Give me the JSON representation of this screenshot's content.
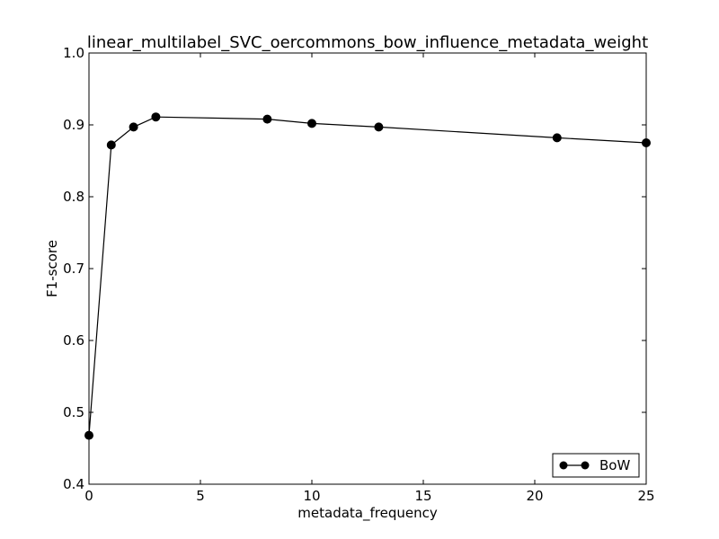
{
  "chart_data": {
    "type": "line",
    "title": "linear_multilabel_SVC_oercommons_bow_influence_metadata_weight",
    "xlabel": "metadata_frequency",
    "ylabel": "F1-score",
    "xlim": [
      0,
      25
    ],
    "ylim": [
      0.4,
      1.0
    ],
    "xticks": [
      0,
      5,
      10,
      15,
      20,
      25
    ],
    "xtick_labels": [
      "0",
      "5",
      "10",
      "15",
      "20",
      "25"
    ],
    "yticks": [
      0.4,
      0.5,
      0.6,
      0.7,
      0.8,
      0.9,
      1.0
    ],
    "ytick_labels": [
      "0.4",
      "0.5",
      "0.6",
      "0.7",
      "0.8",
      "0.9",
      "1.0"
    ],
    "grid": false,
    "legend_position": "bottom-right",
    "series": [
      {
        "name": "BoW",
        "color": "#000000",
        "marker": "circle",
        "x": [
          0,
          1,
          2,
          3,
          8,
          10,
          13,
          21,
          25
        ],
        "y": [
          0.468,
          0.872,
          0.897,
          0.911,
          0.908,
          0.902,
          0.897,
          0.882,
          0.875
        ]
      }
    ]
  }
}
